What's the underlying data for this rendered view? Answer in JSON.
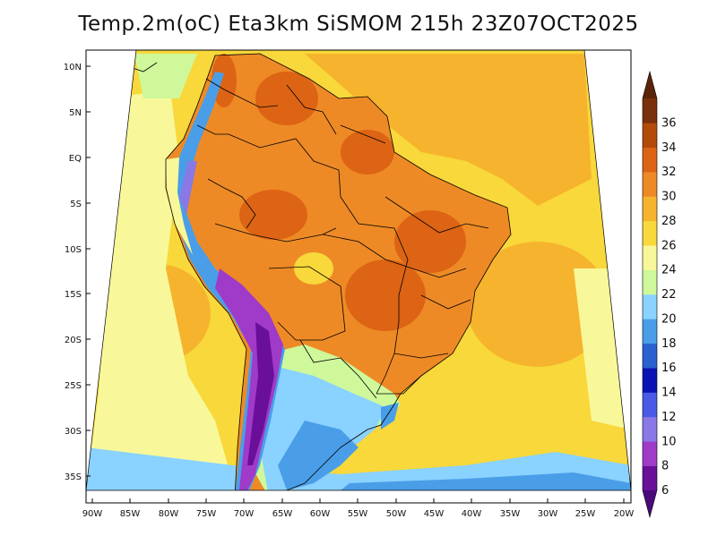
{
  "title": "Temp.2m(oC) Eta3km SiSMOM 215h 23Z07OCT2025",
  "axes": {
    "lat_labels": [
      "10N",
      "5N",
      "EQ",
      "5S",
      "10S",
      "15S",
      "20S",
      "25S",
      "30S",
      "35S"
    ],
    "lon_labels": [
      "90W",
      "85W",
      "80W",
      "75W",
      "70W",
      "65W",
      "60W",
      "55W",
      "50W",
      "45W",
      "40W",
      "35W",
      "30W",
      "25W",
      "20W"
    ]
  },
  "colorbar": {
    "labels": [
      "6",
      "8",
      "10",
      "12",
      "14",
      "16",
      "18",
      "20",
      "22",
      "24",
      "26",
      "28",
      "30",
      "32",
      "34",
      "36"
    ],
    "colors": [
      "#6a0f9a",
      "#a03ac8",
      "#8a78e6",
      "#4a5ae6",
      "#0a14b4",
      "#2a60d2",
      "#4a9ee8",
      "#8ad2ff",
      "#cff89a",
      "#f8f89a",
      "#f8d83a",
      "#f6b42e",
      "#ee8a26",
      "#dc6414",
      "#b44a0a",
      "#7a300a"
    ]
  },
  "colors": {
    "ocean_tropical": "#f6b42e",
    "ocean_subtropical": "#f8d83a",
    "ocean_cool": "#f8f89a",
    "land_hot": "#ee8a26",
    "land_very_hot": "#dc6414",
    "andes_cold": "#a03ac8",
    "south_cool": "#8ad2ff",
    "south_cold": "#4a9ee8",
    "boundaries": "#000000"
  }
}
